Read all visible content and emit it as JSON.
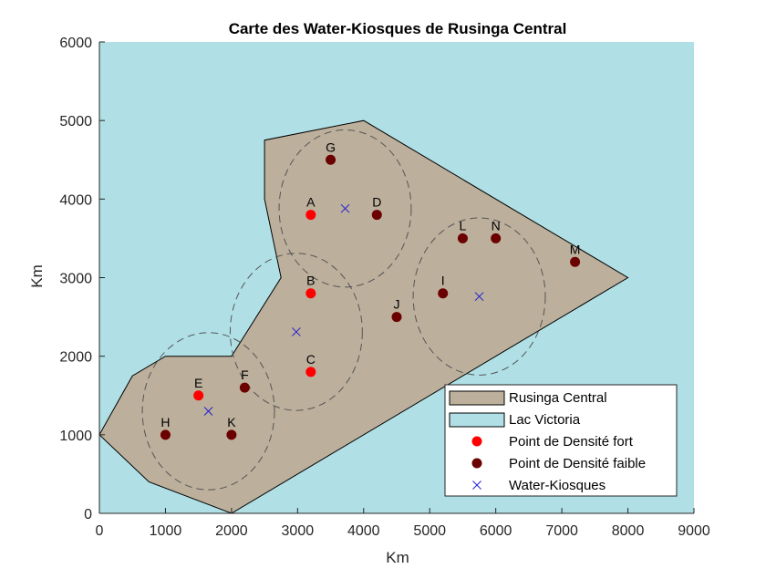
{
  "chart_data": {
    "type": "scatter",
    "title": "Carte des Water-Kiosques de Rusinga Central",
    "xlabel": "Km",
    "ylabel": "Km",
    "xlim": [
      0,
      9000
    ],
    "ylim": [
      0,
      6000
    ],
    "xticks": [
      0,
      1000,
      2000,
      3000,
      4000,
      5000,
      6000,
      7000,
      8000,
      9000
    ],
    "yticks": [
      0,
      1000,
      2000,
      3000,
      4000,
      5000,
      6000
    ],
    "grid": false,
    "legend_position": "bottom-right",
    "colors": {
      "background": "#b0e0e6",
      "island": "#bcaf9c",
      "dense": "#ff0000",
      "sparse": "#6b0000",
      "kiosk": "#1f1fd0",
      "circle": "#555555"
    },
    "region": {
      "name": "Rusinga Central",
      "polygon": [
        [
          0,
          1000
        ],
        [
          500,
          1750
        ],
        [
          1000,
          2000
        ],
        [
          2000,
          2000
        ],
        [
          2750,
          3000
        ],
        [
          2500,
          4000
        ],
        [
          2500,
          4750
        ],
        [
          4000,
          5000
        ],
        [
          8000,
          3000
        ],
        [
          2000,
          0
        ],
        [
          750,
          400
        ]
      ]
    },
    "background_name": "Lac Victoria",
    "series": [
      {
        "name": "Point de Densité fort",
        "points": [
          {
            "label": "A",
            "x": 3200,
            "y": 3800
          },
          {
            "label": "B",
            "x": 3200,
            "y": 2800
          },
          {
            "label": "C",
            "x": 3200,
            "y": 1800
          },
          {
            "label": "E",
            "x": 1500,
            "y": 1500
          }
        ]
      },
      {
        "name": "Point de Densité faible",
        "points": [
          {
            "label": "D",
            "x": 4200,
            "y": 3800
          },
          {
            "label": "F",
            "x": 2200,
            "y": 1600
          },
          {
            "label": "G",
            "x": 3500,
            "y": 4500
          },
          {
            "label": "H",
            "x": 1000,
            "y": 1000
          },
          {
            "label": "I",
            "x": 5200,
            "y": 2800
          },
          {
            "label": "J",
            "x": 4500,
            "y": 2500
          },
          {
            "label": "K",
            "x": 2000,
            "y": 1000
          },
          {
            "label": "L",
            "x": 5500,
            "y": 3500
          },
          {
            "label": "M",
            "x": 7200,
            "y": 3200
          },
          {
            "label": "N",
            "x": 6000,
            "y": 3500
          }
        ]
      },
      {
        "name": "Water-Kiosques",
        "points": [
          {
            "x": 3720,
            "y": 3880,
            "radius": 1000
          },
          {
            "x": 2980,
            "y": 2310,
            "radius": 1000
          },
          {
            "x": 1650,
            "y": 1300,
            "radius": 1000
          },
          {
            "x": 5750,
            "y": 2760,
            "radius": 1000
          }
        ]
      }
    ]
  }
}
